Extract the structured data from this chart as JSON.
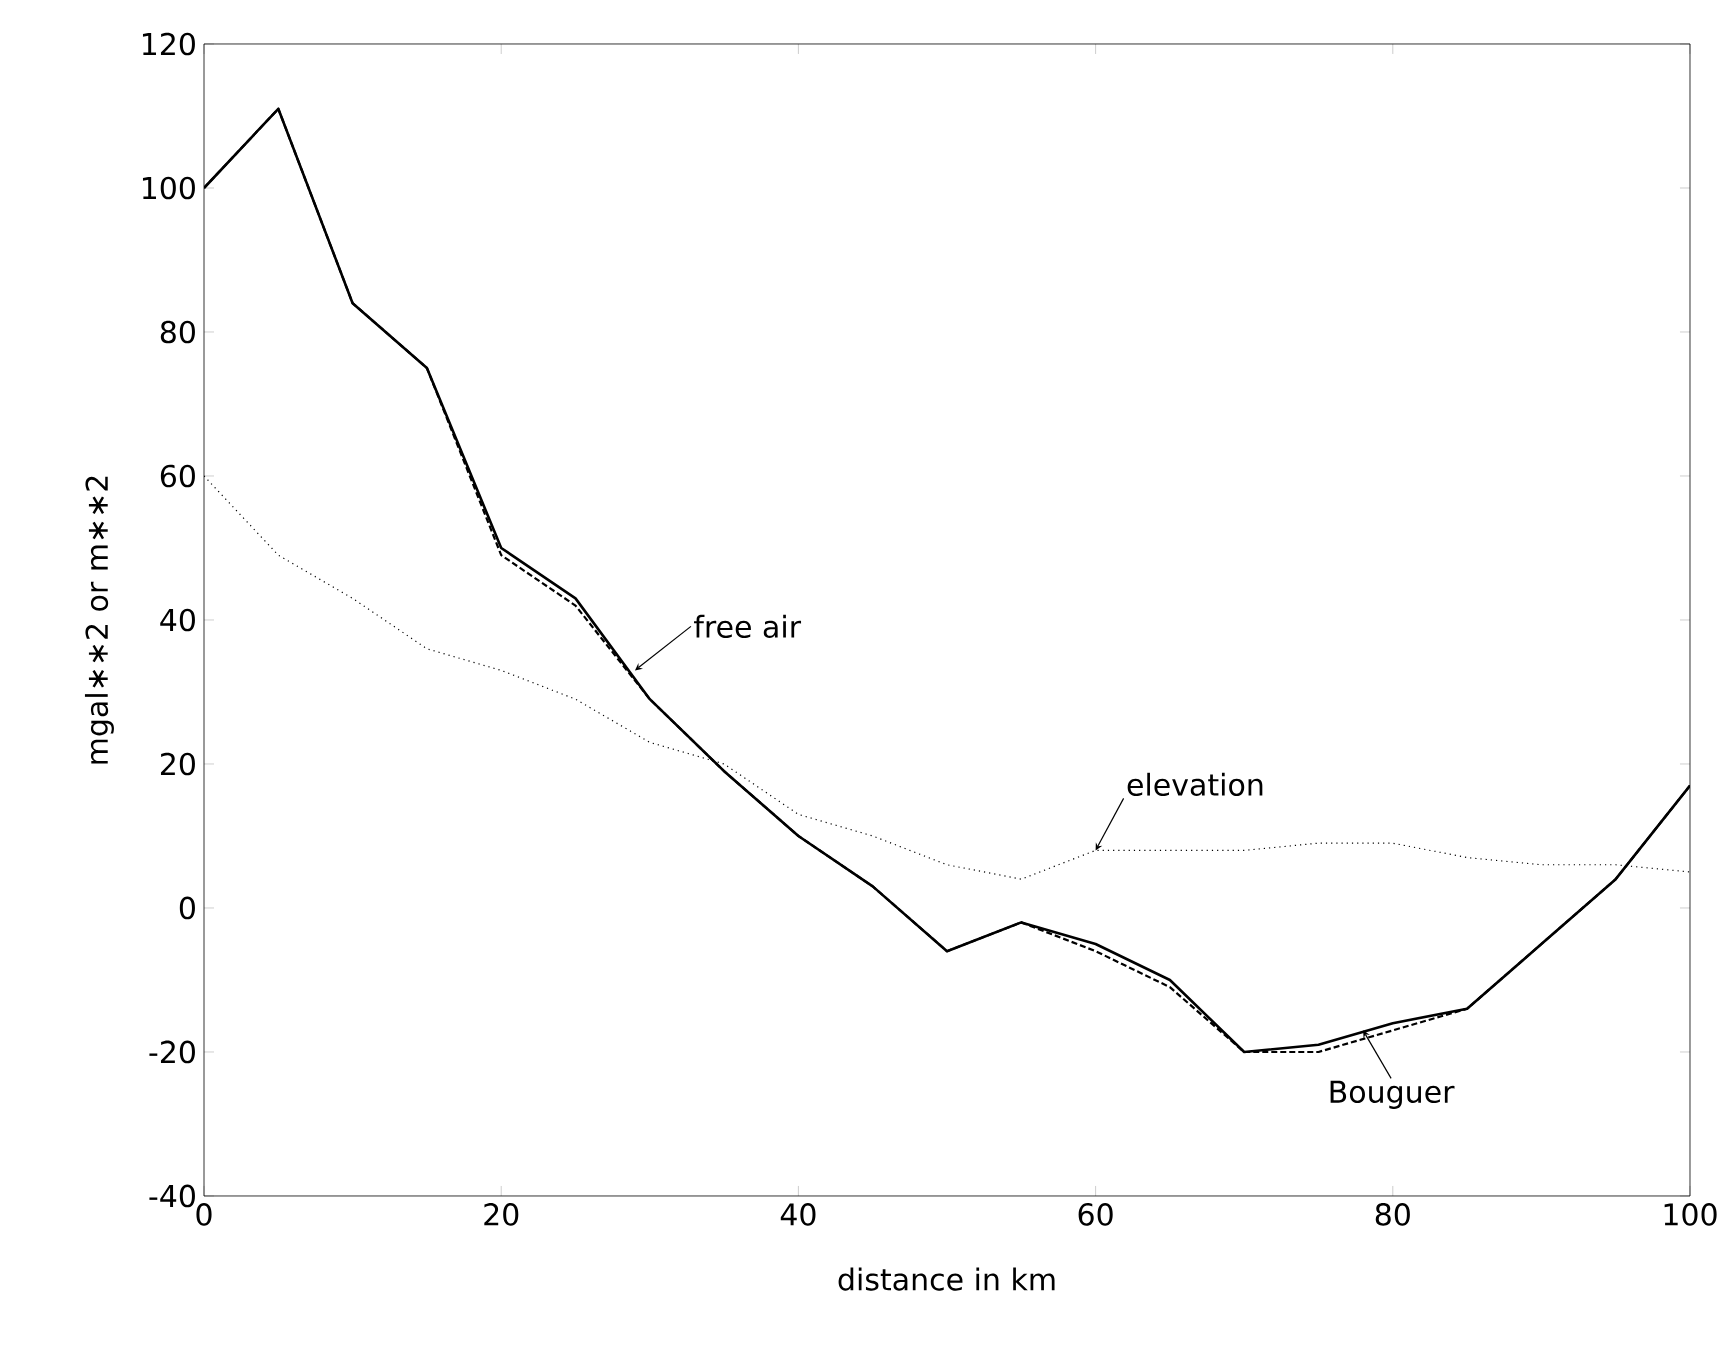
{
  "chart_data": {
    "type": "line",
    "xlabel": "distance in km",
    "ylabel": "mgal∗∗2 or m∗∗2",
    "x": [
      0,
      5,
      10,
      15,
      20,
      25,
      30,
      35,
      40,
      45,
      50,
      55,
      60,
      65,
      70,
      75,
      80,
      85,
      90,
      95,
      100
    ],
    "series": [
      {
        "color": "#000000",
        "line_style": "solid",
        "values": [
          100,
          111,
          84,
          75,
          50,
          43,
          29,
          19,
          10,
          3,
          -6,
          -2,
          -5,
          -10,
          -20,
          -19,
          -16,
          -14,
          -5,
          4,
          17
        ]
      },
      {
        "color": "#000000",
        "line_style": "dashed",
        "values": [
          100,
          111,
          84,
          75,
          49,
          42,
          29,
          19,
          10,
          3,
          -6,
          -2,
          -6,
          -11,
          -20,
          -20,
          -17,
          -14,
          -5,
          4,
          17
        ]
      },
      {
        "color": "#000000",
        "line_style": "dotted",
        "values": [
          60,
          49,
          43,
          36,
          33,
          29,
          23,
          20,
          13,
          10,
          6,
          4,
          8,
          8,
          8,
          9,
          9,
          7,
          6,
          6,
          5
        ]
      }
    ],
    "annotations": [
      {
        "text": "free air",
        "x": 29,
        "y": 33
      },
      {
        "text": "elevation",
        "x": 60,
        "y": 8
      },
      {
        "text": "Bouguer",
        "x": 78,
        "y": -17
      }
    ],
    "xlim": [
      0,
      100
    ],
    "ylim": [
      -40,
      120
    ],
    "xticks": [
      0,
      20,
      40,
      60,
      80,
      100
    ],
    "yticks": [
      -40,
      -20,
      0,
      20,
      40,
      60,
      80,
      100,
      120
    ],
    "grid": false,
    "marker": "none"
  }
}
